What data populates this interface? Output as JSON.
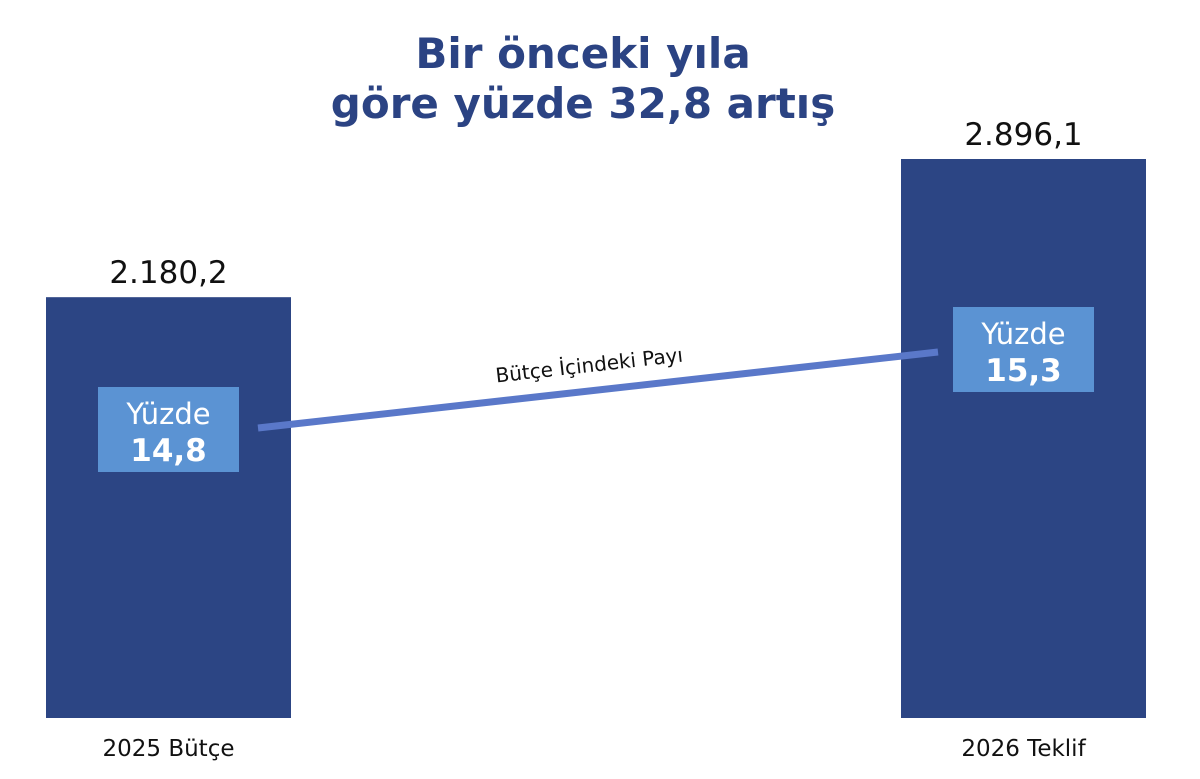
{
  "chart_data": {
    "type": "bar",
    "title_lines": [
      "Bir önceki yıla",
      "göre yüzde 32,8 artış"
    ],
    "categories": [
      "2025 Bütçe",
      "2026 Teklif"
    ],
    "values": [
      2180.2,
      2896.1
    ],
    "value_labels": [
      "2.180,2",
      "2.896,1"
    ],
    "share_line": {
      "label": "Bütçe İçindeki Payı",
      "prefix": "Yüzde",
      "values": [
        14.8,
        15.3
      ],
      "value_labels": [
        "14,8",
        "15,3"
      ]
    },
    "ylim": [
      0,
      2896.1
    ],
    "grid": false,
    "colors": {
      "bar": "#2c4584",
      "box": "#5b93d3",
      "line": "#5a78c9",
      "title": "#2b4383"
    }
  }
}
